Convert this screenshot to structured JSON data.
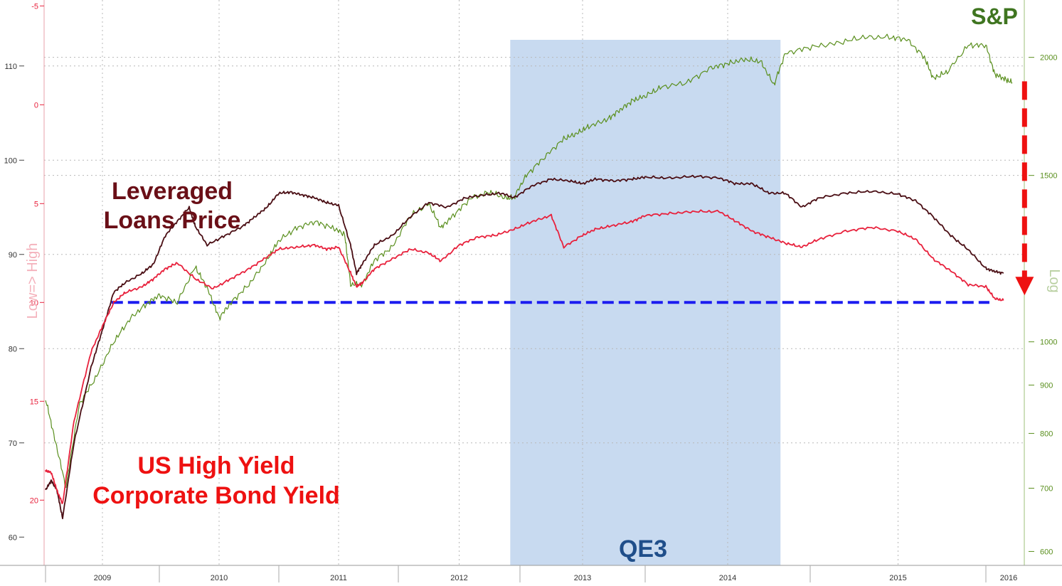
{
  "chart_data": {
    "type": "line",
    "x_tick_labels": [
      "2009",
      "2010",
      "2011",
      "2012",
      "2013",
      "2014",
      "2015",
      "2016"
    ],
    "axes": {
      "loans_price": {
        "ticks": [
          "60",
          "70",
          "80",
          "90",
          "100",
          "110"
        ],
        "range": [
          57,
          117
        ]
      },
      "hy_yield": {
        "ticks": [
          "-5",
          "0",
          "5",
          "10",
          "15",
          "20"
        ],
        "range": [
          23.3,
          -5.3
        ],
        "label": "Low=> High"
      },
      "sp500": {
        "ticks": [
          "600",
          "700",
          "800",
          "900",
          "1000",
          "1500",
          "2000"
        ],
        "range": [
          580,
          2300
        ],
        "scale": "log",
        "label": "Log"
      }
    },
    "series": [
      {
        "name": "S&P",
        "axis": "sp500",
        "color": "#5a8f1e",
        "points": [
          [
            2009.0,
            870
          ],
          [
            2009.08,
            790
          ],
          [
            2009.18,
            700
          ],
          [
            2009.3,
            860
          ],
          [
            2009.45,
            920
          ],
          [
            2009.6,
            1000
          ],
          [
            2009.75,
            1060
          ],
          [
            2009.9,
            1100
          ],
          [
            2010.0,
            1120
          ],
          [
            2010.15,
            1100
          ],
          [
            2010.3,
            1200
          ],
          [
            2010.4,
            1140
          ],
          [
            2010.5,
            1060
          ],
          [
            2010.6,
            1100
          ],
          [
            2010.75,
            1150
          ],
          [
            2010.9,
            1220
          ],
          [
            2011.0,
            1280
          ],
          [
            2011.15,
            1320
          ],
          [
            2011.3,
            1340
          ],
          [
            2011.45,
            1320
          ],
          [
            2011.55,
            1300
          ],
          [
            2011.6,
            1150
          ],
          [
            2011.7,
            1150
          ],
          [
            2011.8,
            1220
          ],
          [
            2011.95,
            1260
          ],
          [
            2012.1,
            1360
          ],
          [
            2012.25,
            1400
          ],
          [
            2012.35,
            1320
          ],
          [
            2012.45,
            1360
          ],
          [
            2012.6,
            1420
          ],
          [
            2012.75,
            1440
          ],
          [
            2012.88,
            1420
          ],
          [
            2012.95,
            1420
          ],
          [
            2013.05,
            1500
          ],
          [
            2013.2,
            1570
          ],
          [
            2013.35,
            1640
          ],
          [
            2013.45,
            1660
          ],
          [
            2013.55,
            1690
          ],
          [
            2013.7,
            1720
          ],
          [
            2013.8,
            1760
          ],
          [
            2013.9,
            1800
          ],
          [
            2014.0,
            1820
          ],
          [
            2014.1,
            1860
          ],
          [
            2014.25,
            1880
          ],
          [
            2014.4,
            1950
          ],
          [
            2014.5,
            1970
          ],
          [
            2014.6,
            1990
          ],
          [
            2014.7,
            1980
          ],
          [
            2014.78,
            1870
          ],
          [
            2014.85,
            2020
          ],
          [
            2015.0,
            2050
          ],
          [
            2015.15,
            2070
          ],
          [
            2015.3,
            2100
          ],
          [
            2015.45,
            2100
          ],
          [
            2015.55,
            2090
          ],
          [
            2015.65,
            2000
          ],
          [
            2015.7,
            1900
          ],
          [
            2015.78,
            1930
          ],
          [
            2015.9,
            2060
          ],
          [
            2016.0,
            2060
          ],
          [
            2016.05,
            1920
          ],
          [
            2016.1,
            1900
          ],
          [
            2016.15,
            1880
          ]
        ]
      },
      {
        "name": "Leveraged Loans Price",
        "axis": "loans_price",
        "color": "#4a0e14",
        "points": [
          [
            2009.0,
            65
          ],
          [
            2009.05,
            66
          ],
          [
            2009.1,
            65
          ],
          [
            2009.15,
            62
          ],
          [
            2009.25,
            70
          ],
          [
            2009.4,
            78
          ],
          [
            2009.5,
            82
          ],
          [
            2009.6,
            86
          ],
          [
            2009.7,
            87
          ],
          [
            2009.85,
            88
          ],
          [
            2009.95,
            89
          ],
          [
            2010.05,
            92
          ],
          [
            2010.15,
            93.5
          ],
          [
            2010.25,
            95
          ],
          [
            2010.3,
            93
          ],
          [
            2010.4,
            91
          ],
          [
            2010.55,
            92
          ],
          [
            2010.7,
            93
          ],
          [
            2010.8,
            94
          ],
          [
            2010.9,
            95
          ],
          [
            2011.0,
            96.5
          ],
          [
            2011.1,
            96.6
          ],
          [
            2011.2,
            96.3
          ],
          [
            2011.3,
            96
          ],
          [
            2011.4,
            95.5
          ],
          [
            2011.5,
            95.2
          ],
          [
            2011.6,
            91
          ],
          [
            2011.65,
            88
          ],
          [
            2011.7,
            89
          ],
          [
            2011.8,
            91
          ],
          [
            2011.95,
            92
          ],
          [
            2012.1,
            94
          ],
          [
            2012.25,
            95.5
          ],
          [
            2012.4,
            95
          ],
          [
            2012.55,
            96
          ],
          [
            2012.7,
            96.3
          ],
          [
            2012.85,
            96.5
          ],
          [
            2012.95,
            96
          ],
          [
            2013.1,
            97.3
          ],
          [
            2013.25,
            98
          ],
          [
            2013.4,
            97.8
          ],
          [
            2013.5,
            97.5
          ],
          [
            2013.6,
            98
          ],
          [
            2013.75,
            97.8
          ],
          [
            2013.9,
            98
          ],
          [
            2014.0,
            98.2
          ],
          [
            2014.15,
            98.1
          ],
          [
            2014.3,
            98.3
          ],
          [
            2014.45,
            98.1
          ],
          [
            2014.55,
            97.5
          ],
          [
            2014.65,
            97.5
          ],
          [
            2014.75,
            96.5
          ],
          [
            2014.85,
            96.5
          ],
          [
            2014.95,
            95
          ],
          [
            2015.05,
            96
          ],
          [
            2015.2,
            96.5
          ],
          [
            2015.35,
            96.7
          ],
          [
            2015.5,
            96.4
          ],
          [
            2015.6,
            95.7
          ],
          [
            2015.7,
            94
          ],
          [
            2015.8,
            92
          ],
          [
            2015.9,
            90.5
          ],
          [
            2016.0,
            88.5
          ],
          [
            2016.05,
            88.2
          ],
          [
            2016.1,
            88
          ]
        ]
      },
      {
        "name": "US High Yield Corporate Bond Yield",
        "axis": "hy_yield",
        "color": "#e8213c",
        "points": [
          [
            2009.0,
            18.5
          ],
          [
            2009.05,
            18.6
          ],
          [
            2009.1,
            19.5
          ],
          [
            2009.15,
            20.2
          ],
          [
            2009.25,
            16
          ],
          [
            2009.4,
            12.5
          ],
          [
            2009.5,
            11.2
          ],
          [
            2009.6,
            10
          ],
          [
            2009.7,
            9.5
          ],
          [
            2009.85,
            9.2
          ],
          [
            2009.95,
            8.8
          ],
          [
            2010.05,
            8.3
          ],
          [
            2010.15,
            8
          ],
          [
            2010.3,
            8.8
          ],
          [
            2010.45,
            9.3
          ],
          [
            2010.6,
            8.8
          ],
          [
            2010.75,
            8.3
          ],
          [
            2010.9,
            7.7
          ],
          [
            2011.0,
            7.3
          ],
          [
            2011.15,
            7.2
          ],
          [
            2011.3,
            7.1
          ],
          [
            2011.4,
            7.3
          ],
          [
            2011.5,
            7.2
          ],
          [
            2011.6,
            8.5
          ],
          [
            2011.65,
            9.2
          ],
          [
            2011.7,
            9
          ],
          [
            2011.8,
            8.3
          ],
          [
            2011.95,
            7.8
          ],
          [
            2012.1,
            7.3
          ],
          [
            2012.25,
            7.5
          ],
          [
            2012.35,
            7.9
          ],
          [
            2012.5,
            7.1
          ],
          [
            2012.65,
            6.7
          ],
          [
            2012.8,
            6.6
          ],
          [
            2012.95,
            6.3
          ],
          [
            2013.1,
            5.9
          ],
          [
            2013.25,
            5.6
          ],
          [
            2013.35,
            7.2
          ],
          [
            2013.5,
            6.6
          ],
          [
            2013.6,
            6.3
          ],
          [
            2013.75,
            6.1
          ],
          [
            2013.9,
            5.9
          ],
          [
            2014.0,
            5.6
          ],
          [
            2014.15,
            5.5
          ],
          [
            2014.3,
            5.4
          ],
          [
            2014.45,
            5.4
          ],
          [
            2014.55,
            5.9
          ],
          [
            2014.65,
            6.4
          ],
          [
            2014.75,
            6.7
          ],
          [
            2014.85,
            7.0
          ],
          [
            2014.95,
            7.2
          ],
          [
            2015.05,
            6.8
          ],
          [
            2015.2,
            6.4
          ],
          [
            2015.35,
            6.2
          ],
          [
            2015.5,
            6.4
          ],
          [
            2015.6,
            6.8
          ],
          [
            2015.7,
            7.8
          ],
          [
            2015.8,
            8.4
          ],
          [
            2015.9,
            9.1
          ],
          [
            2016.0,
            9.2
          ],
          [
            2016.05,
            9.8
          ],
          [
            2016.1,
            9.9
          ]
        ]
      }
    ],
    "shaded_regions": [
      {
        "label": "QE3",
        "x": [
          2012.92,
          2014.82
        ],
        "color": "#c8daf0"
      }
    ],
    "reference_lines": [
      {
        "axis": "hy_yield",
        "value": 10,
        "x": [
          2009.58,
          2016.02
        ],
        "style": "dashed",
        "color": "#1c1cf0"
      }
    ],
    "arrows": [
      {
        "series": "S&P",
        "x": 2016.22,
        "from": 1880,
        "to_value": 10,
        "to_axis": "hy_yield",
        "style": "dashed",
        "color": "#ee1111"
      }
    ],
    "annotations": [
      {
        "id": "sp",
        "text": "S&P",
        "color": "#3f7520"
      },
      {
        "id": "loans1",
        "text": "Leveraged",
        "color": "#6a0f17"
      },
      {
        "id": "loans2",
        "text": "Loans Price",
        "color": "#6a0f17"
      },
      {
        "id": "hy1",
        "text": "US High Yield",
        "color": "#ee1111"
      },
      {
        "id": "hy2",
        "text": "Corporate Bond Yield",
        "color": "#ee1111"
      },
      {
        "id": "qe3",
        "text": "QE3",
        "color": "#1f4e8a"
      }
    ],
    "grid": true,
    "xlim": [
      2008.98,
      2016.28
    ]
  }
}
